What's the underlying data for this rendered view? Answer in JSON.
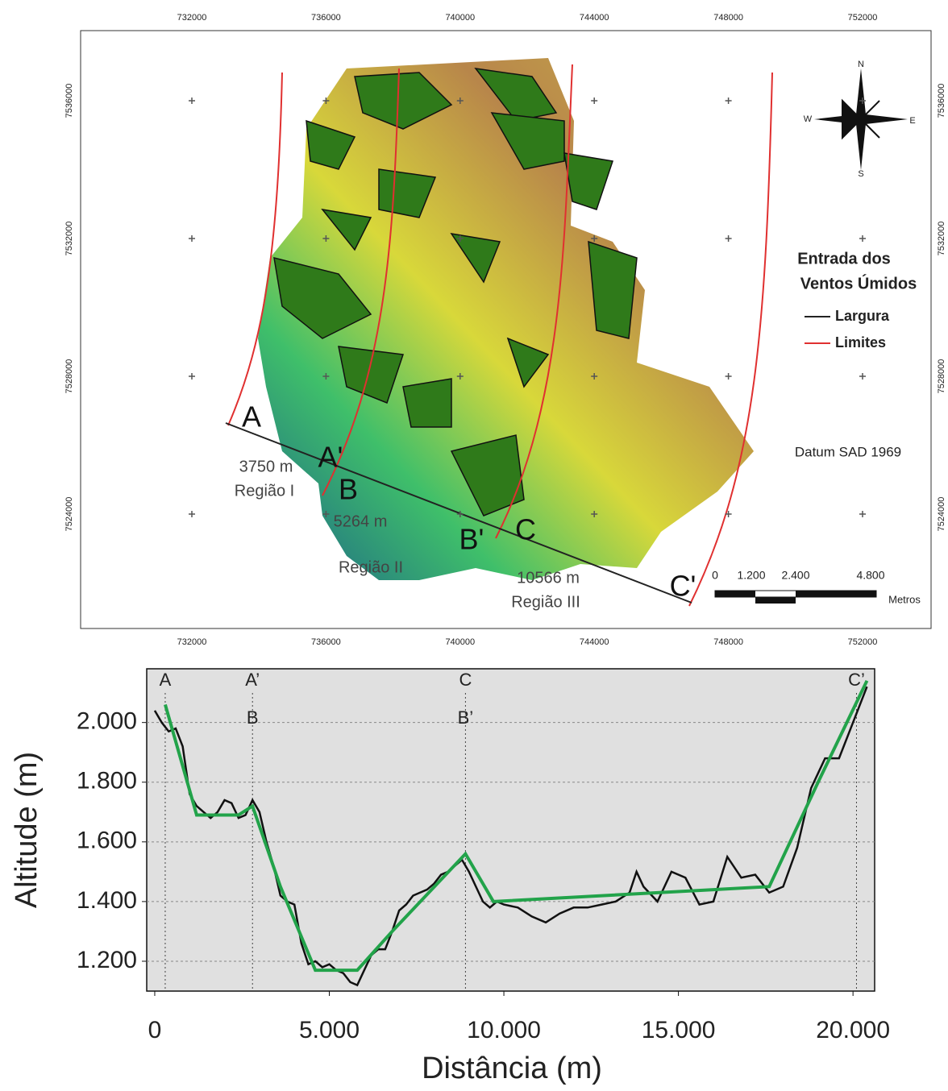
{
  "map": {
    "xticks": [
      732000,
      736000,
      740000,
      744000,
      748000,
      752000
    ],
    "yticks": [
      7536000,
      7532000,
      7528000,
      7524000
    ],
    "points": [
      "A",
      "A'",
      "B",
      "B'",
      "C",
      "C'"
    ],
    "widths": [
      {
        "distance": "3750 m",
        "region": "Região I"
      },
      {
        "distance": "5264 m",
        "region": "Região II"
      },
      {
        "distance": "10566 m",
        "region": "Região III"
      }
    ],
    "legend": {
      "title_1": "Entrada dos",
      "title_2": "Ventos Úmidos",
      "items": [
        "Largura",
        "Limites"
      ]
    },
    "datum": "Datum SAD 1969",
    "scale": {
      "labels": [
        "0",
        "1.200",
        "2.400",
        "4.800"
      ],
      "unit": "Metros"
    },
    "compass": [
      "N",
      "E",
      "S",
      "W"
    ]
  },
  "chart_data": {
    "type": "line",
    "x_label": "Distância (m)",
    "y_label": "Altitude (m)",
    "xlim": [
      -230,
      20620
    ],
    "ylim": [
      1100,
      2180
    ],
    "xticks": [
      0,
      {
        "value": 5000,
        "label": "5.000"
      },
      {
        "value": 10000,
        "label": "10.000"
      },
      {
        "value": 15000,
        "label": "15.000"
      },
      {
        "value": 20000,
        "label": "20.000"
      }
    ],
    "yticks": [
      {
        "value": 1200,
        "label": "1.200"
      },
      {
        "value": 1400,
        "label": "1.400"
      },
      {
        "value": 1600,
        "label": "1.600"
      },
      {
        "value": 1800,
        "label": "1.800"
      },
      {
        "value": 2000,
        "label": "2.000"
      }
    ],
    "grid": true,
    "markers": [
      {
        "x": 300,
        "labels": [
          "A"
        ]
      },
      {
        "x": 2800,
        "labels": [
          "A’",
          "B"
        ]
      },
      {
        "x": 8900,
        "labels": [
          "C",
          "B’"
        ]
      },
      {
        "x": 20100,
        "labels": [
          "C’"
        ]
      }
    ],
    "series": [
      {
        "color": "#111111",
        "x": [
          0,
          200,
          400,
          600,
          800,
          1000,
          1200,
          1400,
          1600,
          1800,
          2000,
          2200,
          2400,
          2600,
          2800,
          3000,
          3200,
          3400,
          3600,
          3800,
          4000,
          4200,
          4400,
          4600,
          4800,
          5000,
          5200,
          5400,
          5600,
          5800,
          6000,
          6200,
          6400,
          6600,
          6800,
          7000,
          7200,
          7400,
          7600,
          7800,
          8000,
          8200,
          8400,
          8600,
          8800,
          9000,
          9200,
          9400,
          9600,
          9800,
          10000,
          10400,
          10800,
          11200,
          11600,
          12000,
          12400,
          12800,
          13200,
          13600,
          13800,
          14000,
          14400,
          14800,
          15200,
          15600,
          16000,
          16400,
          16800,
          17200,
          17600,
          18000,
          18400,
          18800,
          19200,
          19600,
          20000,
          20400
        ],
        "values": [
          2040,
          2000,
          1970,
          1980,
          1920,
          1760,
          1720,
          1700,
          1680,
          1700,
          1740,
          1730,
          1680,
          1690,
          1740,
          1700,
          1600,
          1520,
          1420,
          1400,
          1390,
          1260,
          1190,
          1200,
          1180,
          1190,
          1170,
          1160,
          1130,
          1120,
          1170,
          1220,
          1240,
          1240,
          1300,
          1370,
          1390,
          1420,
          1430,
          1440,
          1460,
          1490,
          1500,
          1520,
          1540,
          1500,
          1450,
          1400,
          1380,
          1400,
          1390,
          1380,
          1350,
          1330,
          1360,
          1380,
          1380,
          1390,
          1400,
          1430,
          1500,
          1450,
          1400,
          1500,
          1480,
          1390,
          1400,
          1550,
          1480,
          1490,
          1430,
          1450,
          1580,
          1780,
          1880,
          1880,
          2000,
          2120
        ]
      },
      {
        "color": "#22a34a",
        "x": [
          300,
          1200,
          2400,
          2800,
          3600,
          4600,
          5800,
          6800,
          8900,
          9700,
          17600,
          19000,
          20400
        ],
        "values": [
          2060,
          1690,
          1690,
          1720,
          1450,
          1170,
          1170,
          1300,
          1560,
          1400,
          1450,
          1800,
          2140
        ]
      }
    ]
  }
}
